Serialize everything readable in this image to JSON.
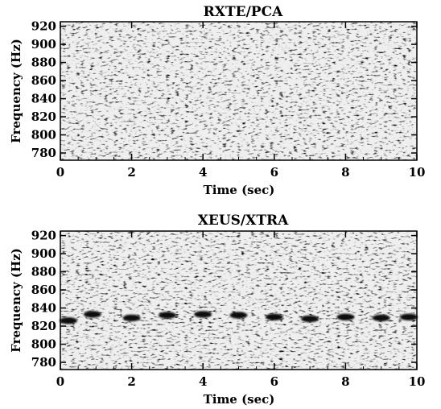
{
  "chart_data": [
    {
      "type": "heatmap",
      "title": "RXTE/PCA",
      "xlabel": "Time (sec)",
      "ylabel": "Frequency (Hz)",
      "xlim": [
        0,
        10
      ],
      "ylim": [
        772,
        925
      ],
      "xticks": [
        0,
        2,
        4,
        6,
        8,
        10
      ],
      "yticks": [
        780,
        800,
        820,
        840,
        860,
        880,
        900,
        920
      ],
      "colormap": "grayscale (white = low power, black = high power)",
      "signal": null
    },
    {
      "type": "heatmap",
      "title": "XEUS/XTRA",
      "xlabel": "Time (sec)",
      "ylabel": "Frequency (Hz)",
      "xlim": [
        0,
        10
      ],
      "ylim": [
        772,
        925
      ],
      "xticks": [
        0,
        2,
        4,
        6,
        8,
        10
      ],
      "yticks": [
        780,
        800,
        820,
        840,
        860,
        880,
        900,
        920
      ],
      "colormap": "grayscale (white = low power, black = high power)",
      "signal": {
        "times": [
          0,
          0.9,
          2.0,
          3.0,
          4.0,
          5.0,
          6.0,
          7.0,
          8.0,
          9.0,
          10.0
        ],
        "frequencies": [
          826,
          833,
          829,
          832,
          833,
          832,
          830,
          828,
          830,
          829,
          830
        ]
      }
    }
  ]
}
